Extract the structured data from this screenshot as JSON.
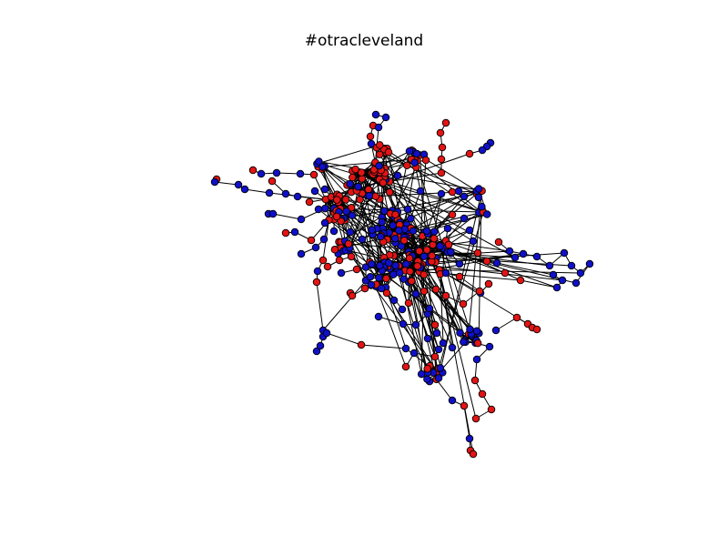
{
  "figure": {
    "title": "#otracleveland"
  },
  "colors": {
    "background": "#ffffff",
    "edge": "#000000",
    "node_red": "#e31414",
    "node_blue": "#1010c8",
    "node_stroke": "#000000"
  }
}
